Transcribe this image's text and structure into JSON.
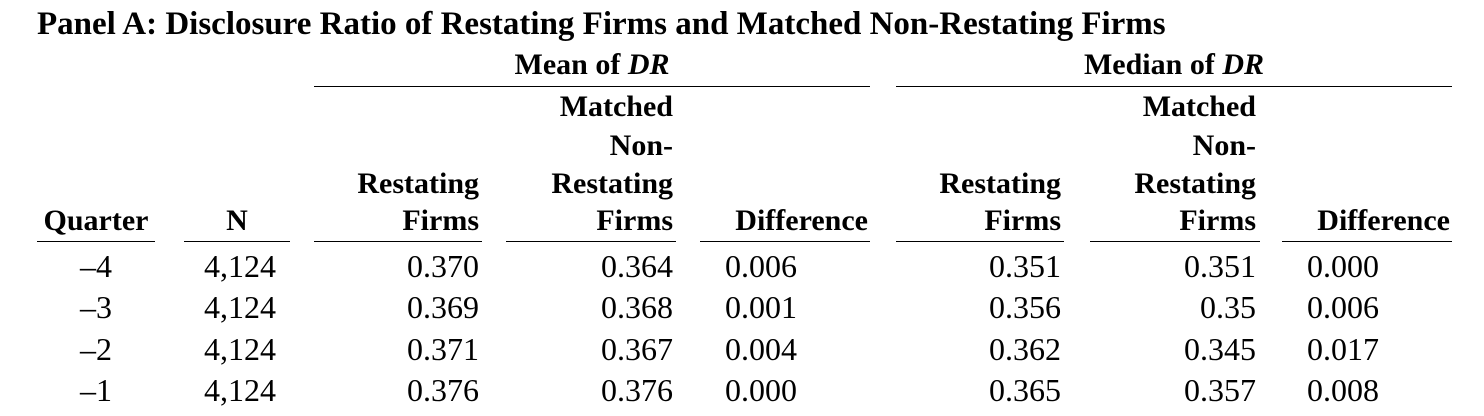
{
  "title": "Panel A: Disclosure Ratio of Restating Firms and Matched Non-Restating Firms",
  "groups": {
    "mean": {
      "label": "Mean of ",
      "var": "DR"
    },
    "median": {
      "label": "Median of ",
      "var": "DR"
    }
  },
  "columns": {
    "quarter": "Quarter",
    "n": "N",
    "mean_restating": [
      "Restating",
      "Firms"
    ],
    "mean_matched": [
      "Matched",
      "Non-",
      "Restating",
      "Firms"
    ],
    "mean_difference": "Difference",
    "median_restating": [
      "Restating",
      "Firms"
    ],
    "median_matched": [
      "Matched",
      "Non-",
      "Restating",
      "Firms"
    ],
    "median_difference": "Difference"
  },
  "rows": [
    [
      "–4",
      "4,124",
      "0.370",
      "0.364",
      "0.006",
      "0.351",
      "0.351",
      "0.000"
    ],
    [
      "–3",
      "4,124",
      "0.369",
      "0.368",
      "0.001",
      "0.356",
      "0.35",
      "0.006"
    ],
    [
      "–2",
      "4,124",
      "0.371",
      "0.367",
      "0.004",
      "0.362",
      "0.345",
      "0.017"
    ],
    [
      "–1",
      "4,124",
      "0.376",
      "0.376",
      "0.000",
      "0.365",
      "0.357",
      "0.008"
    ]
  ]
}
